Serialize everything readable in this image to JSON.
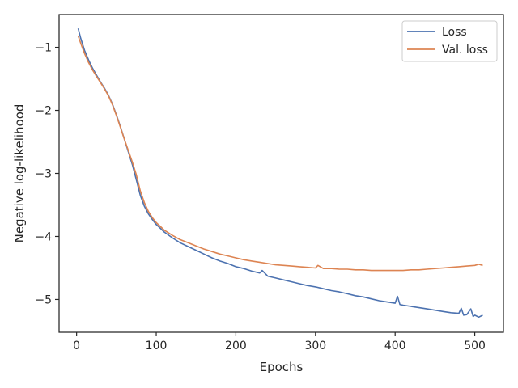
{
  "chart_data": {
    "type": "line",
    "title": "",
    "xlabel": "Epochs",
    "ylabel": "Negative log-likelihood",
    "xlim": [
      -22,
      536
    ],
    "ylim": [
      -5.52,
      -0.48
    ],
    "x_ticks": [
      0,
      100,
      200,
      300,
      400,
      500
    ],
    "x_tick_labels": [
      "0",
      "100",
      "200",
      "300",
      "400",
      "500"
    ],
    "y_ticks": [
      -1,
      -2,
      -3,
      -4,
      -5
    ],
    "y_tick_labels": [
      "−1",
      "−2",
      "−3",
      "−4",
      "−5"
    ],
    "grid": false,
    "legend_position": "top-right",
    "series": [
      {
        "name": "Loss",
        "color": "#4c72b0",
        "points": [
          [
            2,
            -0.7
          ],
          [
            5,
            -0.85
          ],
          [
            10,
            -1.05
          ],
          [
            15,
            -1.2
          ],
          [
            20,
            -1.33
          ],
          [
            25,
            -1.44
          ],
          [
            30,
            -1.55
          ],
          [
            35,
            -1.65
          ],
          [
            40,
            -1.76
          ],
          [
            45,
            -1.9
          ],
          [
            50,
            -2.07
          ],
          [
            55,
            -2.26
          ],
          [
            60,
            -2.46
          ],
          [
            65,
            -2.66
          ],
          [
            70,
            -2.86
          ],
          [
            75,
            -3.1
          ],
          [
            80,
            -3.35
          ],
          [
            85,
            -3.52
          ],
          [
            90,
            -3.64
          ],
          [
            95,
            -3.73
          ],
          [
            100,
            -3.81
          ],
          [
            105,
            -3.87
          ],
          [
            110,
            -3.93
          ],
          [
            120,
            -4.02
          ],
          [
            130,
            -4.1
          ],
          [
            140,
            -4.16
          ],
          [
            150,
            -4.22
          ],
          [
            160,
            -4.28
          ],
          [
            170,
            -4.34
          ],
          [
            180,
            -4.39
          ],
          [
            190,
            -4.43
          ],
          [
            200,
            -4.48
          ],
          [
            210,
            -4.51
          ],
          [
            220,
            -4.55
          ],
          [
            230,
            -4.58
          ],
          [
            233,
            -4.54
          ],
          [
            240,
            -4.63
          ],
          [
            250,
            -4.66
          ],
          [
            260,
            -4.69
          ],
          [
            270,
            -4.72
          ],
          [
            280,
            -4.75
          ],
          [
            290,
            -4.78
          ],
          [
            300,
            -4.8
          ],
          [
            310,
            -4.83
          ],
          [
            320,
            -4.86
          ],
          [
            330,
            -4.88
          ],
          [
            340,
            -4.91
          ],
          [
            350,
            -4.94
          ],
          [
            360,
            -4.96
          ],
          [
            370,
            -4.99
          ],
          [
            380,
            -5.02
          ],
          [
            390,
            -5.04
          ],
          [
            400,
            -5.06
          ],
          [
            403,
            -4.95
          ],
          [
            406,
            -5.08
          ],
          [
            410,
            -5.09
          ],
          [
            420,
            -5.11
          ],
          [
            430,
            -5.13
          ],
          [
            440,
            -5.15
          ],
          [
            450,
            -5.17
          ],
          [
            460,
            -5.19
          ],
          [
            470,
            -5.21
          ],
          [
            480,
            -5.22
          ],
          [
            483,
            -5.14
          ],
          [
            486,
            -5.25
          ],
          [
            490,
            -5.24
          ],
          [
            495,
            -5.15
          ],
          [
            498,
            -5.27
          ],
          [
            500,
            -5.25
          ],
          [
            505,
            -5.28
          ],
          [
            510,
            -5.25
          ]
        ]
      },
      {
        "name": "Val. loss",
        "color": "#dd8452",
        "points": [
          [
            2,
            -0.82
          ],
          [
            5,
            -0.93
          ],
          [
            10,
            -1.1
          ],
          [
            15,
            -1.24
          ],
          [
            20,
            -1.36
          ],
          [
            25,
            -1.46
          ],
          [
            30,
            -1.56
          ],
          [
            35,
            -1.66
          ],
          [
            40,
            -1.77
          ],
          [
            45,
            -1.91
          ],
          [
            50,
            -2.08
          ],
          [
            55,
            -2.27
          ],
          [
            60,
            -2.46
          ],
          [
            65,
            -2.64
          ],
          [
            70,
            -2.82
          ],
          [
            75,
            -3.02
          ],
          [
            80,
            -3.28
          ],
          [
            85,
            -3.46
          ],
          [
            90,
            -3.6
          ],
          [
            95,
            -3.7
          ],
          [
            100,
            -3.78
          ],
          [
            105,
            -3.84
          ],
          [
            110,
            -3.9
          ],
          [
            120,
            -3.98
          ],
          [
            130,
            -4.05
          ],
          [
            140,
            -4.1
          ],
          [
            150,
            -4.15
          ],
          [
            160,
            -4.2
          ],
          [
            170,
            -4.24
          ],
          [
            180,
            -4.28
          ],
          [
            190,
            -4.31
          ],
          [
            200,
            -4.34
          ],
          [
            210,
            -4.37
          ],
          [
            220,
            -4.39
          ],
          [
            230,
            -4.41
          ],
          [
            240,
            -4.43
          ],
          [
            250,
            -4.45
          ],
          [
            260,
            -4.46
          ],
          [
            270,
            -4.47
          ],
          [
            280,
            -4.48
          ],
          [
            290,
            -4.49
          ],
          [
            300,
            -4.5
          ],
          [
            303,
            -4.46
          ],
          [
            310,
            -4.51
          ],
          [
            320,
            -4.51
          ],
          [
            330,
            -4.52
          ],
          [
            340,
            -4.52
          ],
          [
            350,
            -4.53
          ],
          [
            360,
            -4.53
          ],
          [
            370,
            -4.54
          ],
          [
            380,
            -4.54
          ],
          [
            390,
            -4.54
          ],
          [
            400,
            -4.54
          ],
          [
            410,
            -4.54
          ],
          [
            420,
            -4.53
          ],
          [
            430,
            -4.53
          ],
          [
            440,
            -4.52
          ],
          [
            450,
            -4.51
          ],
          [
            460,
            -4.5
          ],
          [
            470,
            -4.49
          ],
          [
            480,
            -4.48
          ],
          [
            490,
            -4.47
          ],
          [
            500,
            -4.46
          ],
          [
            505,
            -4.44
          ],
          [
            510,
            -4.46
          ]
        ]
      }
    ]
  }
}
